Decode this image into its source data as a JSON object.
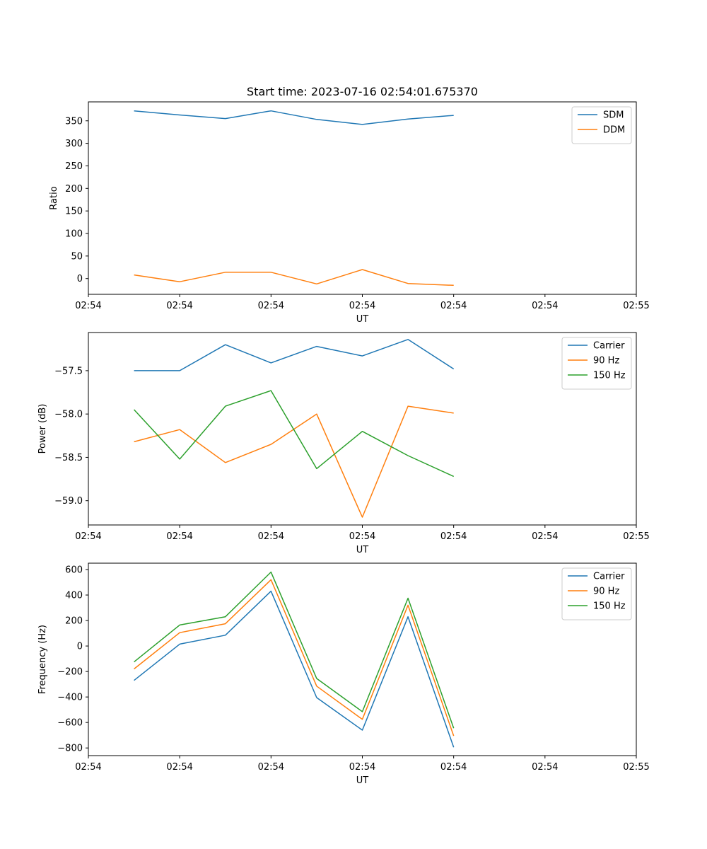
{
  "chart_data": [
    {
      "type": "line",
      "title": "Start time: 2023-07-16 02:54:01.675370",
      "xlabel": "UT",
      "ylabel": "Ratio",
      "xlim": [
        0,
        12
      ],
      "ylim": [
        -35,
        392
      ],
      "x": [
        1,
        2,
        3,
        4,
        5,
        6,
        7,
        8
      ],
      "xticks": [
        0,
        2,
        4,
        6,
        8,
        10,
        12
      ],
      "xtick_labels": [
        "02:54",
        "02:54",
        "02:54",
        "02:54",
        "02:54",
        "02:54",
        "02:55"
      ],
      "yticks": [
        0,
        50,
        100,
        150,
        200,
        250,
        300,
        350
      ],
      "ytick_labels": [
        "0",
        "50",
        "100",
        "150",
        "200",
        "250",
        "300",
        "350"
      ],
      "legend_position": "top-right",
      "series": [
        {
          "name": "SDM",
          "color": "#1f77b4",
          "values": [
            372,
            363,
            355,
            372,
            353,
            342,
            354,
            362
          ]
        },
        {
          "name": "DDM",
          "color": "#ff7f0e",
          "values": [
            8,
            -7,
            14,
            14,
            -12,
            20,
            -11,
            -15
          ]
        }
      ]
    },
    {
      "type": "line",
      "title": "",
      "xlabel": "UT",
      "ylabel": "Power (dB)",
      "xlim": [
        0,
        12
      ],
      "ylim": [
        -59.28,
        -57.06
      ],
      "x": [
        1,
        2,
        3,
        4,
        5,
        6,
        7,
        8
      ],
      "xticks": [
        0,
        2,
        4,
        6,
        8,
        10,
        12
      ],
      "xtick_labels": [
        "02:54",
        "02:54",
        "02:54",
        "02:54",
        "02:54",
        "02:54",
        "02:55"
      ],
      "yticks": [
        -57.5,
        -58.0,
        -58.5,
        -59.0
      ],
      "ytick_labels": [
        "−57.5",
        "−58.0",
        "−58.5",
        "−59.0"
      ],
      "legend_position": "top-right",
      "series": [
        {
          "name": "Carrier",
          "color": "#1f77b4",
          "values": [
            -57.5,
            -57.5,
            -57.2,
            -57.41,
            -57.22,
            -57.33,
            -57.14,
            -57.48
          ]
        },
        {
          "name": "90 Hz",
          "color": "#ff7f0e",
          "values": [
            -58.32,
            -58.18,
            -58.56,
            -58.35,
            -58.0,
            -59.19,
            -57.91,
            -57.99
          ]
        },
        {
          "name": "150 Hz",
          "color": "#2ca02c",
          "values": [
            -57.95,
            -58.52,
            -57.91,
            -57.73,
            -58.63,
            -58.2,
            -58.48,
            -58.72
          ]
        }
      ]
    },
    {
      "type": "line",
      "title": "",
      "xlabel": "UT",
      "ylabel": "Frequency (Hz)",
      "xlim": [
        0,
        12
      ],
      "ylim": [
        -860,
        650
      ],
      "x": [
        1,
        2,
        3,
        4,
        5,
        6,
        7,
        8
      ],
      "xticks": [
        0,
        2,
        4,
        6,
        8,
        10,
        12
      ],
      "xtick_labels": [
        "02:54",
        "02:54",
        "02:54",
        "02:54",
        "02:54",
        "02:54",
        "02:55"
      ],
      "yticks": [
        600,
        400,
        200,
        0,
        -200,
        -400,
        -600,
        -800
      ],
      "ytick_labels": [
        "600",
        "400",
        "200",
        "0",
        "−200",
        "−400",
        "−600",
        "−800"
      ],
      "legend_position": "top-right",
      "series": [
        {
          "name": "Carrier",
          "color": "#1f77b4",
          "values": [
            -270,
            15,
            85,
            430,
            -405,
            -660,
            230,
            -795
          ]
        },
        {
          "name": "90 Hz",
          "color": "#ff7f0e",
          "values": [
            -180,
            105,
            175,
            520,
            -315,
            -575,
            320,
            -705
          ]
        },
        {
          "name": "150 Hz",
          "color": "#2ca02c",
          "values": [
            -125,
            165,
            230,
            580,
            -255,
            -515,
            375,
            -645
          ]
        }
      ]
    }
  ]
}
